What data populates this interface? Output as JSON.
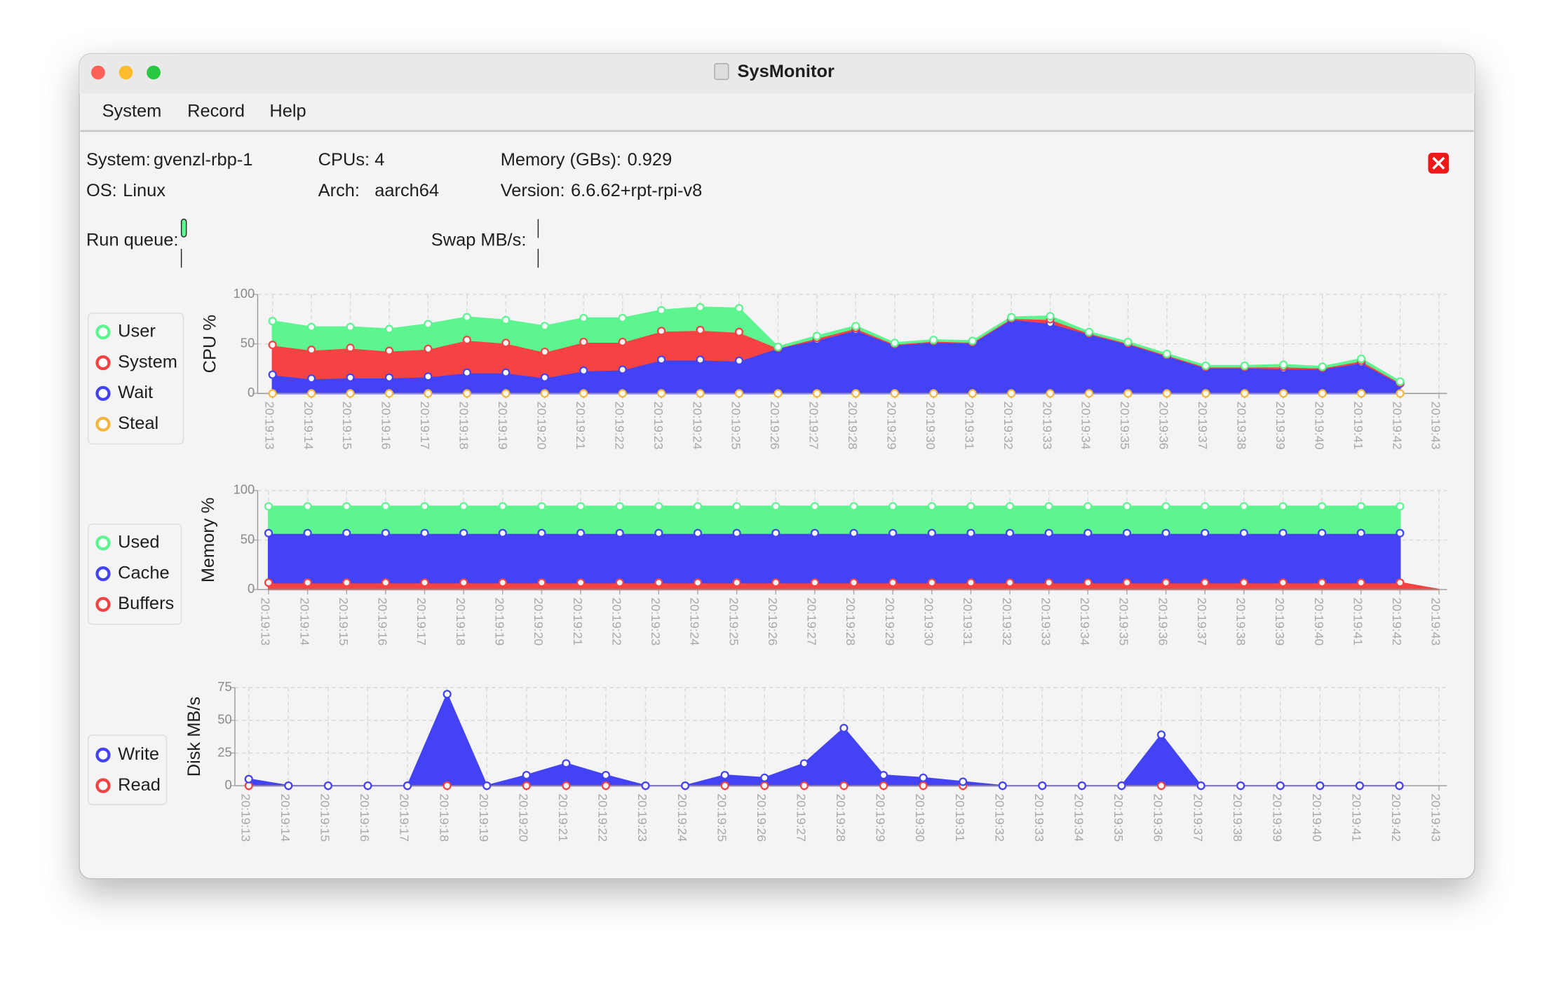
{
  "window": {
    "title": "SysMonitor"
  },
  "menu": [
    "System",
    "Record",
    "Help"
  ],
  "info": {
    "system_label": "System:",
    "system": "gvenzl-rbp-1",
    "os_label": "OS:",
    "os": "Linux",
    "cpus_label": "CPUs:",
    "cpus": 4,
    "arch_label": "Arch:",
    "arch": "aarch64",
    "memory_label": "Memory (GBs):",
    "memory": 0.929,
    "version_label": "Version:",
    "version": "6.6.62+rpt-rpi-v8",
    "run_queue_label": "Run queue:",
    "swap_label": "Swap MB/s:"
  },
  "chart_data": [
    {
      "type": "area",
      "stacked": true,
      "y_label": "CPU %",
      "ylim": [
        0,
        100
      ],
      "yticks": [
        0,
        50,
        100
      ],
      "grid": true,
      "categories": [
        "20:19:13",
        "20:19:14",
        "20:19:15",
        "20:19:16",
        "20:19:17",
        "20:19:18",
        "20:19:19",
        "20:19:20",
        "20:19:21",
        "20:19:22",
        "20:19:23",
        "20:19:24",
        "20:19:25",
        "20:19:26",
        "20:19:27",
        "20:19:28",
        "20:19:29",
        "20:19:30",
        "20:19:31",
        "20:19:32",
        "20:19:33",
        "20:19:34",
        "20:19:35",
        "20:19:36",
        "20:19:37",
        "20:19:38",
        "20:19:39",
        "20:19:40",
        "20:19:41",
        "20:19:42",
        "20:19:43"
      ],
      "series": [
        {
          "name": "Steal",
          "color": "#f5b63f",
          "values": [
            0,
            0,
            0,
            0,
            0,
            0,
            0,
            0,
            0,
            0,
            0,
            0,
            0,
            0,
            0,
            0,
            0,
            0,
            0,
            0,
            0,
            0,
            0,
            0,
            0,
            0,
            0,
            0,
            0,
            0,
            null
          ]
        },
        {
          "name": "Wait",
          "color": "#4343f5",
          "values": [
            19,
            15,
            16,
            16,
            17,
            21,
            21,
            16,
            23,
            24,
            34,
            34,
            33,
            46,
            54,
            64,
            49,
            52,
            51,
            75,
            71,
            60,
            50,
            38,
            26,
            26,
            25,
            25,
            31,
            10,
            null
          ]
        },
        {
          "name": "System",
          "color": "#f54343",
          "values": [
            30,
            29,
            30,
            27,
            28,
            33,
            30,
            26,
            29,
            28,
            29,
            30,
            29,
            0,
            2,
            2,
            1,
            1,
            1,
            1,
            4,
            1,
            1,
            1,
            1,
            1,
            2,
            1,
            2,
            1,
            null
          ]
        },
        {
          "name": "User",
          "color": "#5cf58f",
          "values": [
            24,
            23,
            21,
            22,
            25,
            23,
            23,
            26,
            24,
            24,
            21,
            23,
            24,
            1,
            2,
            2,
            1,
            1,
            1,
            1,
            3,
            1,
            1,
            1,
            1,
            1,
            2,
            1,
            2,
            1,
            null
          ]
        }
      ]
    },
    {
      "type": "area",
      "stacked": true,
      "y_label": "Memory %",
      "ylim": [
        0,
        100
      ],
      "yticks": [
        0,
        50,
        100
      ],
      "grid": true,
      "categories": [
        "20:19:13",
        "20:19:14",
        "20:19:15",
        "20:19:16",
        "20:19:17",
        "20:19:18",
        "20:19:19",
        "20:19:20",
        "20:19:21",
        "20:19:22",
        "20:19:23",
        "20:19:24",
        "20:19:25",
        "20:19:26",
        "20:19:27",
        "20:19:28",
        "20:19:29",
        "20:19:30",
        "20:19:31",
        "20:19:32",
        "20:19:33",
        "20:19:34",
        "20:19:35",
        "20:19:36",
        "20:19:37",
        "20:19:38",
        "20:19:39",
        "20:19:40",
        "20:19:41",
        "20:19:42",
        "20:19:43"
      ],
      "series": [
        {
          "name": "Buffers",
          "color": "#f54343",
          "values": [
            7,
            7,
            7,
            7,
            7,
            7,
            7,
            7,
            7,
            7,
            7,
            7,
            7,
            7,
            7,
            7,
            7,
            7,
            7,
            7,
            7,
            7,
            7,
            7,
            7,
            7,
            7,
            7,
            7,
            7,
            0
          ]
        },
        {
          "name": "Cache",
          "color": "#4343f5",
          "values": [
            50,
            50,
            50,
            50,
            50,
            50,
            50,
            50,
            50,
            50,
            50,
            50,
            50,
            50,
            50,
            50,
            50,
            50,
            50,
            50,
            50,
            50,
            50,
            50,
            50,
            50,
            50,
            50,
            50,
            50,
            null
          ]
        },
        {
          "name": "Used",
          "color": "#5cf58f",
          "values": [
            27,
            27,
            27,
            27,
            27,
            27,
            27,
            27,
            27,
            27,
            27,
            27,
            27,
            27,
            27,
            27,
            27,
            27,
            27,
            27,
            27,
            27,
            27,
            27,
            27,
            27,
            27,
            27,
            27,
            27,
            null
          ]
        }
      ]
    },
    {
      "type": "area",
      "stacked": true,
      "y_label": "Disk MB/s",
      "ylim": [
        0,
        75
      ],
      "yticks": [
        0,
        25,
        50,
        75
      ],
      "grid": true,
      "categories": [
        "20:19:13",
        "20:19:14",
        "20:19:15",
        "20:19:16",
        "20:19:17",
        "20:19:18",
        "20:19:19",
        "20:19:20",
        "20:19:21",
        "20:19:22",
        "20:19:23",
        "20:19:24",
        "20:19:25",
        "20:19:26",
        "20:19:27",
        "20:19:28",
        "20:19:29",
        "20:19:30",
        "20:19:31",
        "20:19:32",
        "20:19:33",
        "20:19:34",
        "20:19:35",
        "20:19:36",
        "20:19:37",
        "20:19:38",
        "20:19:39",
        "20:19:40",
        "20:19:41",
        "20:19:42",
        "20:19:43"
      ],
      "series": [
        {
          "name": "Read",
          "color": "#f54343",
          "values": [
            0,
            0,
            0,
            0,
            0,
            0,
            0,
            0,
            0,
            0,
            0,
            0,
            0,
            0,
            0,
            0,
            0,
            0,
            0,
            0,
            0,
            0,
            0,
            0,
            0,
            0,
            0,
            0,
            0,
            0,
            null
          ]
        },
        {
          "name": "Write",
          "color": "#4343f5",
          "values": [
            5,
            0,
            0,
            0,
            0,
            70,
            0,
            8,
            17,
            8,
            0,
            0,
            8,
            6,
            17,
            44,
            8,
            6,
            3,
            0,
            0,
            0,
            0,
            39,
            0,
            0,
            0,
            0,
            0,
            0,
            null
          ]
        }
      ]
    }
  ]
}
